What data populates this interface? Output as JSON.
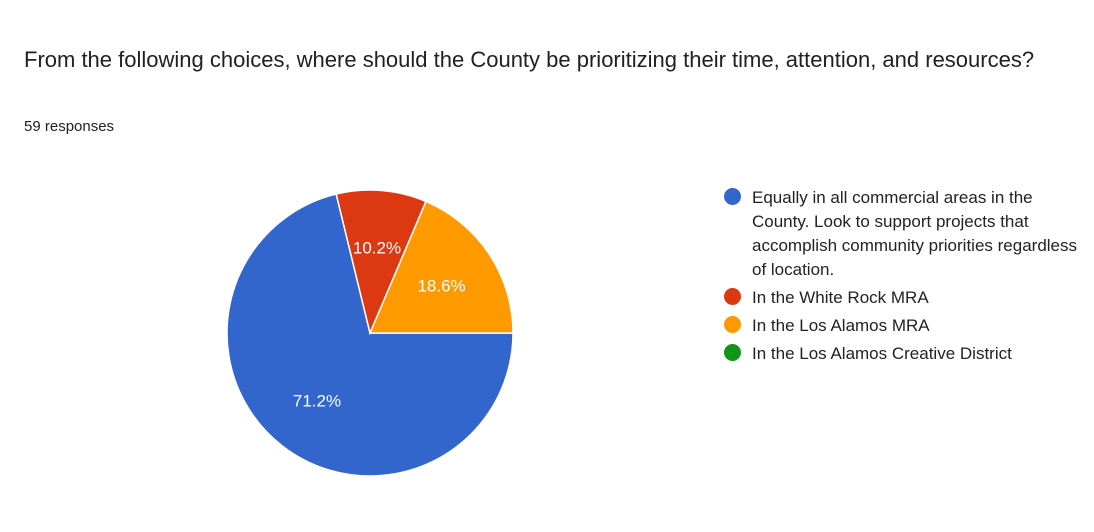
{
  "title": "From the following choices, where should the County be prioritizing their time, attention, and resources?",
  "subtitle": "59 responses",
  "chart_data": {
    "type": "pie",
    "title": "From the following choices, where should the County be prioritizing their time, attention, and resources?",
    "legend_position": "right",
    "categories": [
      "Equally in all commercial areas in the County. Look to support projects that accomplish community priorities regardless of location.",
      "In the White Rock MRA",
      "In the Los Alamos MRA",
      "In the Los Alamos Creative District"
    ],
    "values": [
      71.2,
      10.2,
      18.6,
      0
    ],
    "labels": [
      "71.2%",
      "10.2%",
      "18.6%",
      ""
    ],
    "colors": [
      "#3366cc",
      "#dc3912",
      "#ff9900",
      "#109618"
    ]
  }
}
